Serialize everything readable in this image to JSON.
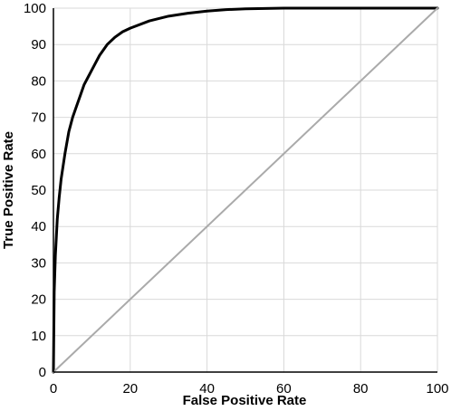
{
  "chart_data": {
    "type": "line",
    "title": "",
    "xlabel": "False Positive Rate",
    "ylabel": "True Positive Rate",
    "xlim": [
      0,
      100
    ],
    "ylim": [
      0,
      100
    ],
    "xticks": [
      "0",
      "20",
      "40",
      "60",
      "80",
      "100"
    ],
    "yticks": [
      "0",
      "10",
      "20",
      "30",
      "40",
      "50",
      "60",
      "70",
      "80",
      "90",
      "100"
    ],
    "grid": true,
    "legend": "none",
    "series": [
      {
        "color": "#000000",
        "x": [
          0,
          0.2,
          0.5,
          1,
          1.5,
          2,
          3,
          4,
          5,
          6,
          7,
          8,
          9,
          10,
          12,
          14,
          16,
          18,
          20,
          25,
          30,
          35,
          40,
          45,
          50,
          60,
          70,
          80,
          90,
          100
        ],
        "y": [
          0,
          22,
          32,
          42,
          48,
          53,
          60,
          66,
          70,
          73,
          76,
          79,
          81,
          83,
          87,
          90,
          92,
          93.5,
          94.5,
          96.5,
          97.8,
          98.6,
          99.2,
          99.6,
          99.8,
          100,
          100,
          100,
          100,
          100
        ]
      },
      {
        "color": "#aaaaaa",
        "x": [
          0,
          100
        ],
        "y": [
          0,
          100
        ]
      }
    ]
  }
}
